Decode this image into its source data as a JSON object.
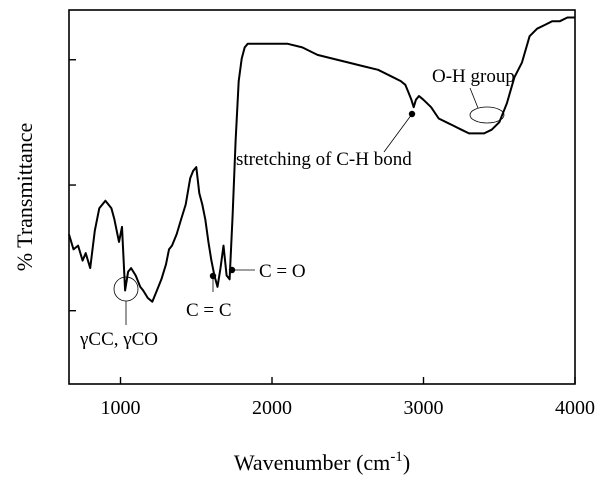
{
  "chart_data": {
    "type": "line",
    "xlabel": "Wavenumber (cm",
    "xlabel_sup": "-1",
    "xlabel_close": ")",
    "ylabel": "% Transmittance",
    "xlim": [
      660,
      4000
    ],
    "ylim": [
      0,
      100
    ],
    "x_ticks": [
      1000,
      2000,
      3000,
      4000
    ],
    "x_tick_labels": [
      "1000",
      "2000",
      "3000",
      "4000"
    ],
    "y_ticks_unlabeled": [
      19.6,
      53.2,
      86.7
    ],
    "grid": false,
    "legend": "none",
    "line_color": "#000000",
    "series": [
      {
        "x": [
          660,
          690,
          720,
          750,
          770,
          800,
          830,
          860,
          900,
          940,
          960,
          990,
          1010,
          1030,
          1050,
          1070,
          1100,
          1130,
          1150,
          1180,
          1210,
          1240,
          1270,
          1300,
          1320,
          1340,
          1370,
          1400,
          1430,
          1460,
          1480,
          1500,
          1520,
          1540,
          1560,
          1580,
          1600,
          1620,
          1640,
          1660,
          1680,
          1700,
          1720,
          1740,
          1760,
          1780,
          1800,
          1820,
          1840,
          1860,
          1900,
          2000,
          2100,
          2200,
          2300,
          2400,
          2500,
          2600,
          2700,
          2800,
          2850,
          2880,
          2900,
          2920,
          2935,
          2950,
          2970,
          3000,
          3050,
          3100,
          3150,
          3200,
          3250,
          3300,
          3350,
          3400,
          3450,
          3500,
          3550,
          3600,
          3650,
          3700,
          3750,
          3800,
          3850,
          3900,
          3950,
          3980,
          4000
        ],
        "y": [
          40,
          36,
          37,
          33,
          35,
          31,
          41,
          47,
          49,
          47,
          44,
          38,
          42,
          25,
          30,
          31,
          29,
          26,
          25,
          23,
          22,
          25,
          28,
          32,
          36,
          37,
          40,
          44,
          48,
          55,
          57,
          58,
          51,
          48,
          44,
          38,
          33,
          29,
          26,
          31,
          37,
          29,
          28,
          45,
          65,
          81,
          87,
          90,
          91,
          91,
          91,
          91,
          91,
          90,
          88,
          87,
          86,
          85,
          84,
          82,
          81,
          80,
          78,
          76,
          74,
          76,
          77,
          76,
          74,
          71,
          70,
          69,
          68,
          67,
          67,
          67,
          68,
          70,
          75,
          82,
          86,
          93,
          95,
          96,
          97,
          97,
          98,
          98,
          98
        ]
      }
    ],
    "annotations": [
      {
        "text": "γCC, γCO",
        "x": 1040
      },
      {
        "text": "C = C",
        "x": 1610
      },
      {
        "text": "C = O",
        "x": 1720
      },
      {
        "text": "stretching of C-H bond",
        "x": 2935
      },
      {
        "text": "O-H group",
        "x": 3400
      }
    ]
  }
}
